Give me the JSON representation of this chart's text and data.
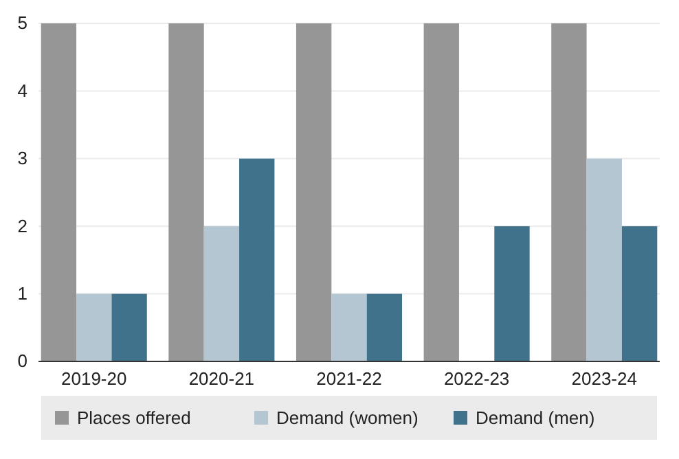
{
  "chart_data": {
    "type": "bar",
    "categories": [
      "2019-20",
      "2020-21",
      "2021-22",
      "2022-23",
      "2023-24"
    ],
    "series": [
      {
        "name": "Places offered",
        "color": "#969696",
        "values": [
          5,
          5,
          5,
          5,
          5
        ]
      },
      {
        "name": "Demand (women)",
        "color": "#b4c6d1",
        "values": [
          1,
          2,
          1,
          0,
          3
        ]
      },
      {
        "name": "Demand (men)",
        "color": "#41728c",
        "values": [
          1,
          3,
          1,
          2,
          2
        ]
      }
    ],
    "ylim": [
      0,
      5
    ],
    "yticks": [
      0,
      1,
      2,
      3,
      4,
      5
    ],
    "grid": "y",
    "legend": "bottom"
  }
}
